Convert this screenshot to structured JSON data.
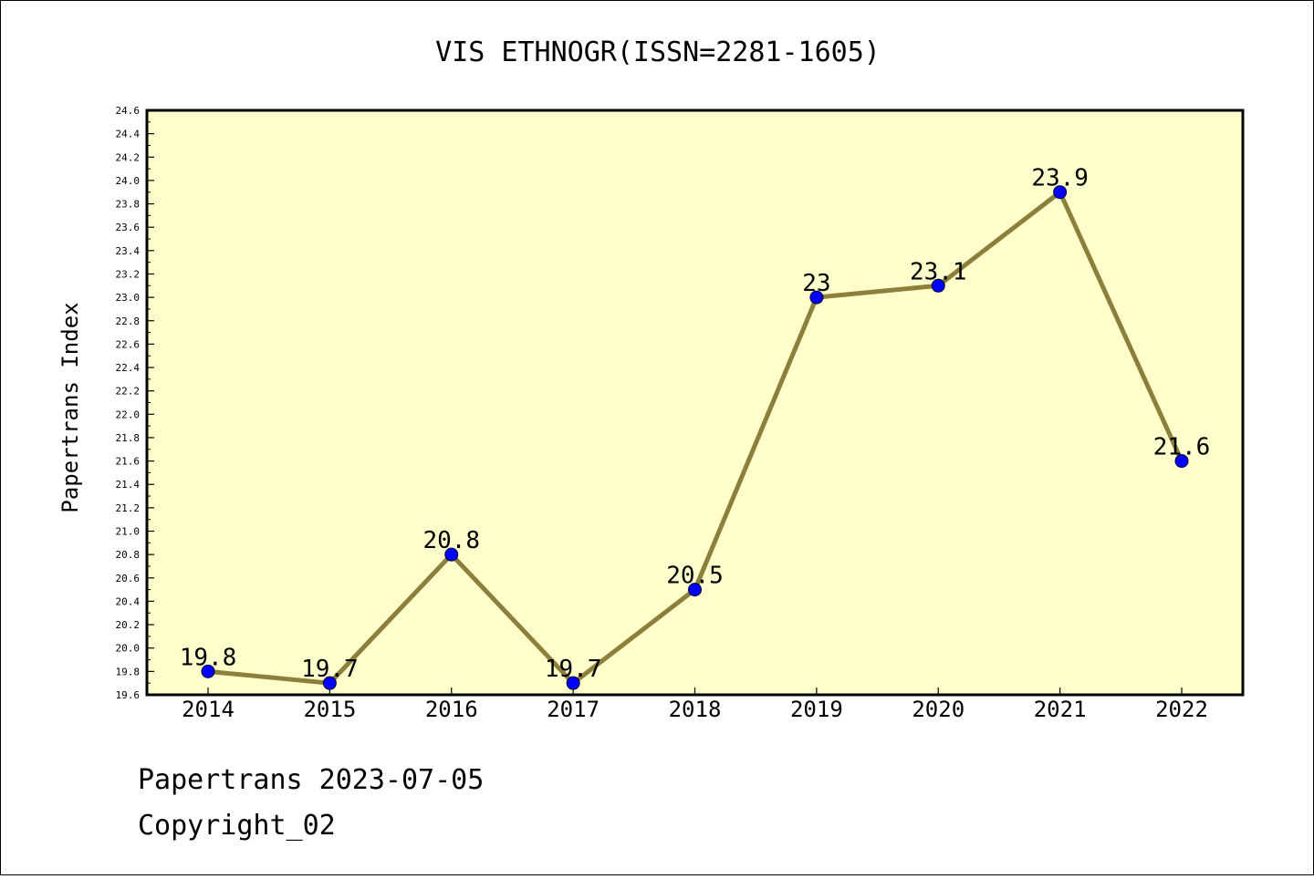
{
  "chart_data": {
    "type": "line",
    "title": "VIS ETHNOGR(ISSN=2281-1605)",
    "ylabel": "Papertrans Index",
    "xlabel": "",
    "categories": [
      "2014",
      "2015",
      "2016",
      "2017",
      "2018",
      "2019",
      "2020",
      "2021",
      "2022"
    ],
    "values": [
      19.8,
      19.7,
      20.8,
      19.7,
      20.5,
      23,
      23.1,
      23.9,
      21.6
    ],
    "value_labels": [
      "19.8",
      "19.7",
      "20.8",
      "19.7",
      "20.5",
      "23",
      "23.1",
      "23.9",
      "21.6"
    ],
    "ylim": [
      19.6,
      24.6
    ],
    "yticks": [
      "19.6",
      "19.8",
      "20.0",
      "20.2",
      "20.4",
      "20.6",
      "20.8",
      "21.0",
      "21.2",
      "21.4",
      "21.6",
      "21.8",
      "22.0",
      "22.2",
      "22.4",
      "22.6",
      "22.8",
      "23.0",
      "23.2",
      "23.4",
      "23.6",
      "23.8",
      "24.0",
      "24.2",
      "24.4",
      "24.6"
    ],
    "grid": false,
    "colors": {
      "plot_background": "#ffffcc",
      "line": "#8c7f3b",
      "marker": "#0000ff"
    }
  },
  "footer": {
    "line1": "Papertrans 2023-07-05",
    "line2": "Copyright_02"
  }
}
